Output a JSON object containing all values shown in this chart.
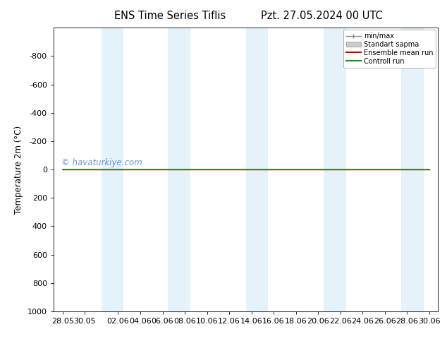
{
  "title_left": "ENS Time Series Tiflis",
  "title_right": "Pzt. 27.05.2024 00 UTC",
  "ylabel": "Temperature 2m (°C)",
  "ylim_bottom": 1000,
  "ylim_top": -1000,
  "yticks": [
    -800,
    -600,
    -400,
    -200,
    0,
    200,
    400,
    600,
    800,
    1000
  ],
  "xtick_labels": [
    "28.05",
    "30.05",
    "02.06",
    "04.06",
    "06.06",
    "08.06",
    "10.06",
    "12.06",
    "14.06",
    "16.06",
    "18.06",
    "20.06",
    "22.06",
    "24.06",
    "26.06",
    "28.06",
    "30.06"
  ],
  "xtick_positions": [
    0,
    2,
    5,
    7,
    9,
    11,
    13,
    15,
    17,
    19,
    21,
    23,
    25,
    27,
    29,
    31,
    33
  ],
  "shade_bands": [
    [
      3.5,
      5.5
    ],
    [
      9.5,
      11.5
    ],
    [
      16.5,
      18.5
    ],
    [
      23.5,
      25.5
    ],
    [
      30.5,
      32.5
    ]
  ],
  "shade_color": "#d0e8f5",
  "shade_alpha": 0.55,
  "control_run_color": "#228822",
  "ensemble_mean_color": "#cc0000",
  "background_color": "#ffffff",
  "watermark": "© havaturkiye.com",
  "watermark_color": "#3366cc",
  "watermark_alpha": 0.7,
  "title_fontsize": 10.5,
  "axis_fontsize": 8,
  "xlim_left": -0.8,
  "xlim_right": 33.8,
  "x_line_start": 0,
  "x_line_end": 33
}
